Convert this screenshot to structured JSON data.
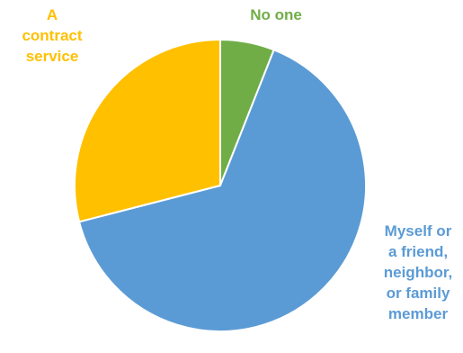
{
  "chart_data": {
    "type": "pie",
    "title": "",
    "slices": [
      {
        "label": "No one",
        "label_lines": [
          "No one"
        ],
        "value": 6,
        "color": "#70ad47"
      },
      {
        "label": "Myself or a friend, neighbor, or family member",
        "label_lines": [
          "Myself or",
          "a friend,",
          "neighbor,",
          "or family",
          "member"
        ],
        "value": 65,
        "color": "#5b9bd5"
      },
      {
        "label": "A contract service",
        "label_lines": [
          "A",
          "contract",
          "service"
        ],
        "value": 29,
        "color": "#ffc000"
      }
    ],
    "start_angle_deg": 0,
    "direction": "clockwise",
    "legend": "none",
    "data_labels": "category name outside slices"
  }
}
